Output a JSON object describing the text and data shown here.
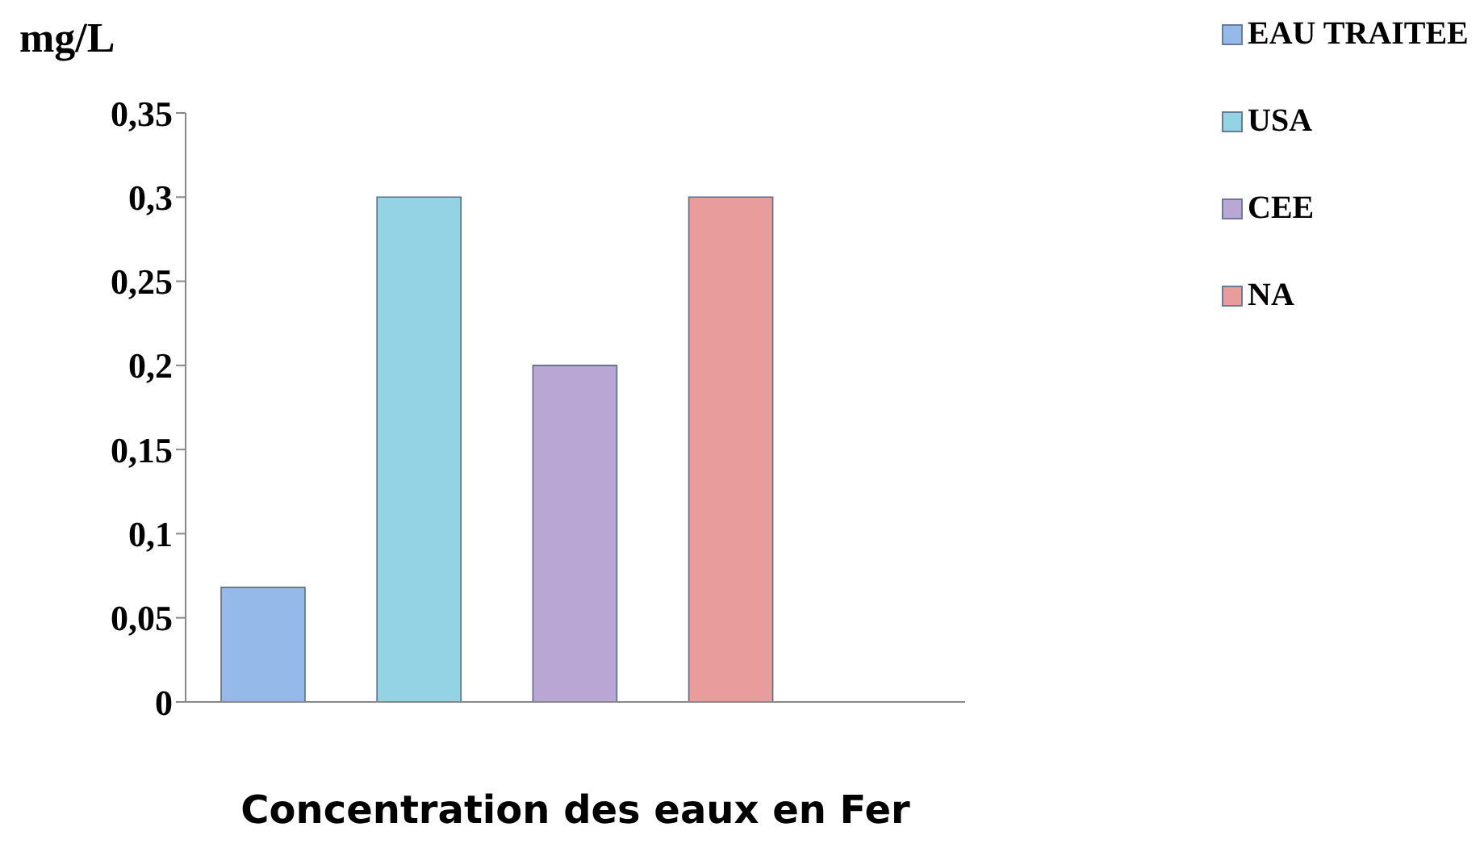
{
  "chart_data": {
    "type": "bar",
    "xlabel": "Concentration des eaux en Fer",
    "ylabel": "mg/L",
    "categories": [
      null,
      null,
      null,
      null,
      null
    ],
    "series": [
      {
        "name": "EAU TRAITEE",
        "color": "#95b9e8",
        "values": [
          0.068,
          null,
          null,
          null,
          null
        ]
      },
      {
        "name": "USA",
        "color": "#93d3e3",
        "values": [
          null,
          0.3,
          null,
          null,
          null
        ]
      },
      {
        "name": "CEE",
        "color": "#b9a6d4",
        "values": [
          null,
          null,
          0.2,
          null,
          null
        ]
      },
      {
        "name": "NA",
        "color": "#e89c9c",
        "values": [
          null,
          null,
          null,
          0.3,
          null
        ]
      }
    ],
    "ylim": [
      0,
      0.35
    ],
    "yticks": [
      {
        "value": 0,
        "label": "0"
      },
      {
        "value": 0.05,
        "label": "0,05"
      },
      {
        "value": 0.1,
        "label": "0,1"
      },
      {
        "value": 0.15,
        "label": "0,15"
      },
      {
        "value": 0.2,
        "label": "0,2"
      },
      {
        "value": 0.25,
        "label": "0,25"
      },
      {
        "value": 0.3,
        "label": "0,3"
      },
      {
        "value": 0.35,
        "label": "0,35"
      }
    ],
    "grid": false,
    "legend": "top right"
  }
}
